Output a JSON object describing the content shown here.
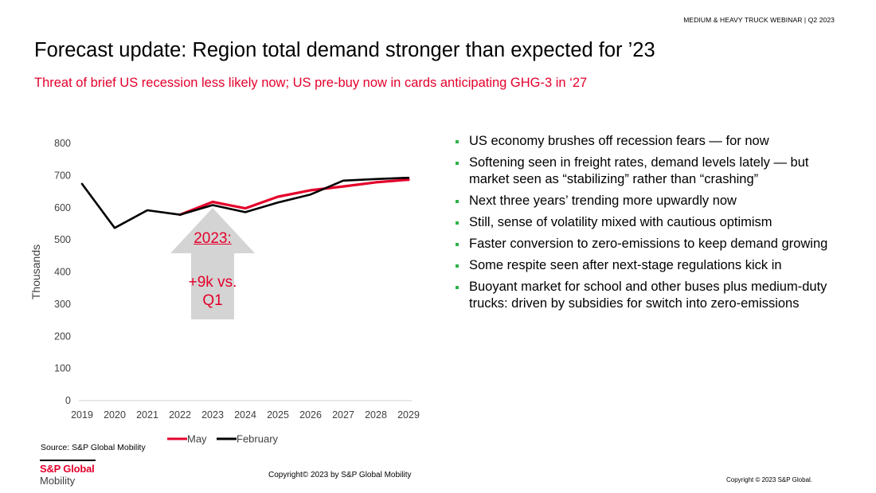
{
  "header": {
    "tag": "MEDIUM & HEAVY TRUCK WEBINAR | Q2 2023"
  },
  "title": "Forecast update: Region total demand stronger than expected for ’23",
  "subtitle": "Threat of brief US recession less likely now; US pre-buy now in cards anticipating GHG-3 in ‘27",
  "callout": {
    "line1": "2023:",
    "line2a": "+9k vs.",
    "line2b": "Q1",
    "arrow_color": "#d4d4d4"
  },
  "bullets": [
    "US economy brushes off recession fears — for now",
    "Softening seen in freight rates, demand levels lately — but market seen as “stabilizing” rather than “crashing”",
    "Next three years’ trending more upwardly now",
    "Still, sense of volatility mixed with cautious optimism",
    "Faster conversion to zero-emissions to keep demand growing",
    "Some respite seen after next-stage regulations kick in",
    "Buoyant market for school and other buses plus medium-duty trucks: driven by subsidies for switch into zero-emissions"
  ],
  "footer": {
    "source": "Source: S&P Global Mobility",
    "brand_line1": "S&P Global",
    "brand_line2": "Mobility",
    "copyright_center": "Copyright© 2023 by S&P Global  Mobility",
    "copyright_right": "Copyright © 2023 S&P Global."
  },
  "colors": {
    "accent_red": "#e4002b",
    "series_black": "#000000",
    "bullet_green": "#2db34a"
  },
  "chart_data": {
    "type": "line",
    "title": "",
    "xlabel": "",
    "ylabel": "Thousands",
    "categories": [
      "2019",
      "2020",
      "2021",
      "2022",
      "2023",
      "2024",
      "2025",
      "2026",
      "2027",
      "2028",
      "2029"
    ],
    "ylim": [
      0,
      800
    ],
    "yticks": [
      "0",
      "100",
      "200",
      "300",
      "400",
      "500",
      "600",
      "700",
      "800"
    ],
    "grid": false,
    "legend_position": "bottom",
    "series": [
      {
        "name": "May",
        "color": "#e4002b",
        "start_index": 3,
        "values": [
          null,
          null,
          null,
          578,
          618,
          598,
          634,
          654,
          666,
          679,
          687
        ]
      },
      {
        "name": "February",
        "color": "#000000",
        "start_index": 0,
        "values": [
          674,
          537,
          592,
          578,
          608,
          586,
          616,
          641,
          684,
          689,
          693
        ]
      }
    ]
  }
}
